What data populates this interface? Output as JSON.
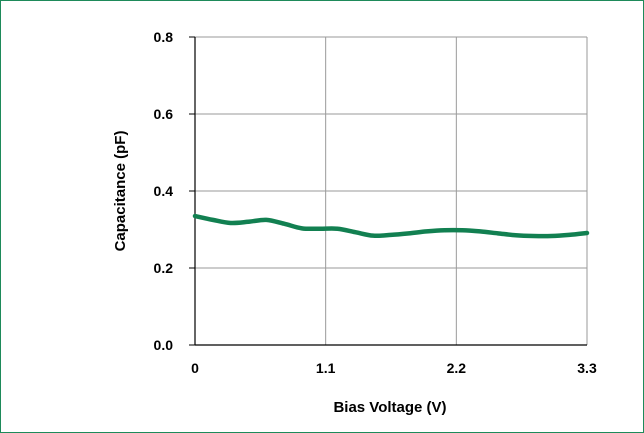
{
  "chart_data": {
    "type": "line",
    "title": "",
    "xlabel": "Bias Voltage (V)",
    "ylabel": "Capacitance (pF)",
    "xlim": [
      0,
      3.3
    ],
    "ylim": [
      0,
      0.8
    ],
    "xticks": [
      "0",
      "1.1",
      "2.2",
      "3.3"
    ],
    "yticks": [
      "0.0",
      "0.2",
      "0.4",
      "0.6",
      "0.8"
    ],
    "grid": true,
    "legend": "none",
    "colors": {
      "line": "#128051",
      "grid": "#9a9a9a",
      "frame": "#1e8a5a"
    },
    "series": [
      {
        "x": [
          0,
          0.15,
          0.3,
          0.45,
          0.6,
          0.75,
          0.9,
          1.05,
          1.2,
          1.35,
          1.5,
          1.65,
          1.8,
          1.95,
          2.1,
          2.25,
          2.4,
          2.55,
          2.7,
          2.85,
          3.0,
          3.15,
          3.3
        ],
        "y": [
          0.335,
          0.325,
          0.317,
          0.32,
          0.325,
          0.315,
          0.303,
          0.302,
          0.302,
          0.293,
          0.284,
          0.286,
          0.29,
          0.295,
          0.298,
          0.298,
          0.295,
          0.29,
          0.285,
          0.283,
          0.283,
          0.286,
          0.291
        ]
      }
    ]
  }
}
